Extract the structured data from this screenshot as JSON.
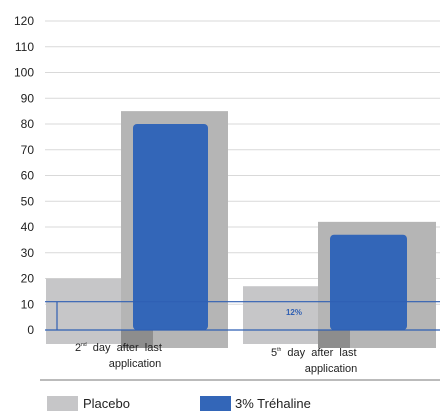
{
  "chart_data": {
    "type": "bar",
    "ylim": [
      0,
      120
    ],
    "yticks": [
      0,
      10,
      20,
      30,
      40,
      50,
      60,
      70,
      80,
      90,
      100,
      110,
      120
    ],
    "grid": true,
    "legend_placement": "bottom",
    "categories": [
      {
        "pre": "2",
        "sup": "nd",
        "line1": " day after last",
        "line2": "application"
      },
      {
        "pre": "5",
        "sup": "th",
        "line1": " day after last",
        "line2": "application"
      }
    ],
    "series": [
      {
        "name": "Placebo",
        "color": "#c6c6c8",
        "values": [
          20,
          17
        ]
      },
      {
        "name": "3% Tréhaline",
        "color": "#3366b8",
        "values": [
          80,
          37
        ]
      }
    ],
    "shadow_values": [
      85,
      42
    ],
    "annotations": [
      {
        "text": "12%",
        "category_index": 1,
        "y": 7
      }
    ]
  }
}
